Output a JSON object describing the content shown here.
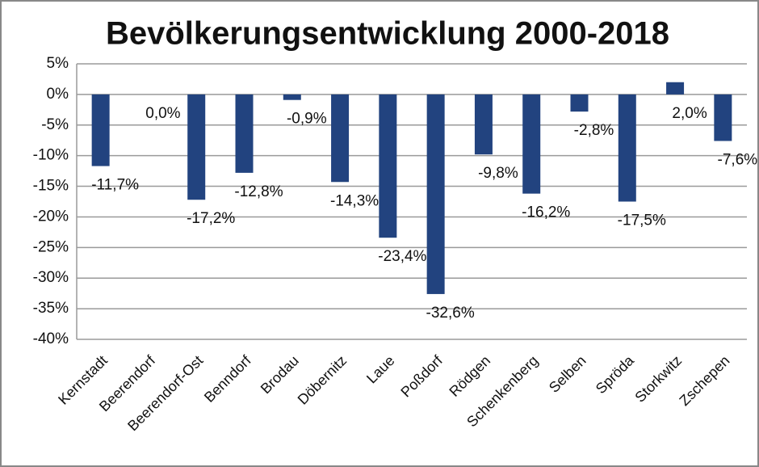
{
  "chart_data": {
    "type": "bar",
    "title": "Bevölkerungsentwicklung 2000-2018",
    "categories": [
      "Kernstadt",
      "Beerendorf",
      "Beerendorf-Ost",
      "Benndorf",
      "Brodau",
      "Döbernitz",
      "Laue",
      "Poßdorf",
      "Rödgen",
      "Schenkenberg",
      "Selben",
      "Spröda",
      "Storkwitz",
      "Zschepen"
    ],
    "values": [
      -11.7,
      0.0,
      -17.2,
      -12.8,
      -0.9,
      -14.3,
      -23.4,
      -32.6,
      -9.8,
      -16.2,
      -2.8,
      -17.5,
      2.0,
      -7.6
    ],
    "value_labels": [
      "-11,7%",
      "0,0%",
      "-17,2%",
      "-12,8%",
      "-0,9%",
      "-14,3%",
      "-23,4%",
      "-32,6%",
      "-9,8%",
      "-16,2%",
      "-2,8%",
      "-17,5%",
      "2,0%",
      "-7,6%"
    ],
    "color": "#22437f",
    "ylim": [
      -40,
      5
    ],
    "yticks": [
      {
        "value": 5,
        "label": "5%"
      },
      {
        "value": 0,
        "label": "0%"
      },
      {
        "value": -5,
        "label": "-5%"
      },
      {
        "value": -10,
        "label": "-10%"
      },
      {
        "value": -15,
        "label": "-15%"
      },
      {
        "value": -20,
        "label": "-20%"
      },
      {
        "value": -25,
        "label": "-25%"
      },
      {
        "value": -30,
        "label": "-30%"
      },
      {
        "value": -35,
        "label": "-35%"
      },
      {
        "value": -40,
        "label": "-40%"
      }
    ],
    "grid": true
  }
}
